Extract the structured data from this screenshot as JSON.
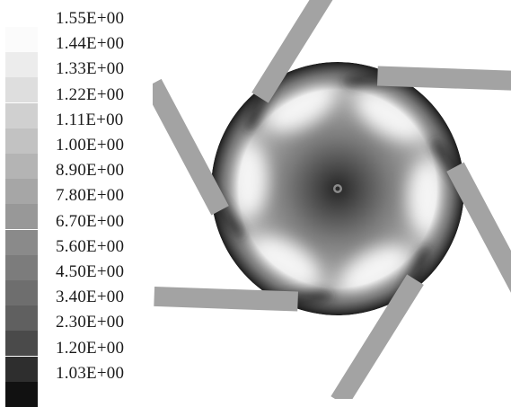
{
  "legend": {
    "labels": [
      "1.55E+00",
      "1.44E+00",
      "1.33E+00",
      "1.22E+00",
      "1.11E+00",
      "1.00E+00",
      "8.90E+00",
      "7.80E+00",
      "6.70E+00",
      "5.60E+00",
      "4.50E+00",
      "3.40E+00",
      "2.30E+00",
      "1.20E+00",
      "1.03E+00"
    ],
    "colors": [
      "#fbfbfb",
      "#ececec",
      "#dedede",
      "#d0d0d0",
      "#c2c2c2",
      "#b4b4b4",
      "#a6a6a6",
      "#989898",
      "#8a8a8a",
      "#7c7c7c",
      "#6e6e6e",
      "#606060",
      "#4a4a4a",
      "#2e2e2e",
      "#111111"
    ]
  },
  "impeller": {
    "blade_count": 6,
    "blade_color": "#a3a3a3",
    "disk_edge_color": "#1e1e1e",
    "center_color": "#2a2a2a",
    "highlight_color": "#f4f4f4"
  }
}
